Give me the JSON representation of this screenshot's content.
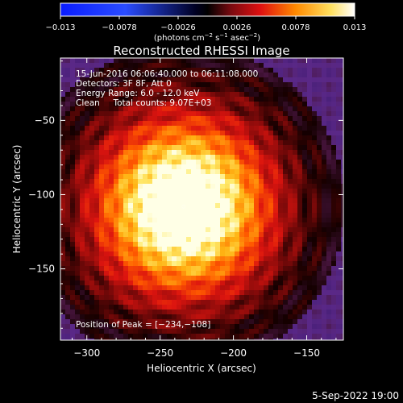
{
  "chart_data": {
    "type": "heatmap",
    "title": "Reconstructed RHESSI Image",
    "xlabel": "Heliocentric X (arcsec)",
    "ylabel": "Heliocentric Y (arcsec)",
    "xlim": [
      -318,
      -125
    ],
    "ylim": [
      -198,
      -8
    ],
    "x_ticks": [
      -300,
      -250,
      -200,
      -150
    ],
    "y_ticks": [
      -50,
      -100,
      -150
    ],
    "colorbar": {
      "range": [
        -0.013,
        0.013
      ],
      "ticks": [
        -0.013,
        -0.0078,
        -0.0026,
        0.0026,
        0.0078,
        0.013
      ],
      "tick_labels": [
        "−0.013",
        "−0.0078",
        "−0.0026",
        "0.0026",
        "0.0078",
        "0.013"
      ],
      "units_prefix": "(photons cm",
      "units_exp1": "−2",
      "units_mid": " s",
      "units_exp2": "−1",
      "units_mid2": " asec",
      "units_exp3": "−2",
      "units_suffix": ")"
    },
    "peak": [
      -234,
      -108
    ],
    "annotations": {
      "time_range": "15‐Jun‐2016 06:06:40.000 to 06:11:08.000",
      "detectors": "Detectors: 3F 8F, Att 0",
      "energy": "Energy Range: 6.0 ‐ 12.0 keV",
      "clean": "Clean     Total counts: 9.07E+03",
      "peak_text": "Position of Peak = [−234,−108]"
    },
    "colors": {
      "bar_low": "#0a1cff",
      "bar_mid": "#000000",
      "bar_high": "#ffffff",
      "background_level": "#5a2a86",
      "hot": "#ffe66a"
    }
  },
  "footer": {
    "date": "5‐Sep‐2022 19:00"
  }
}
